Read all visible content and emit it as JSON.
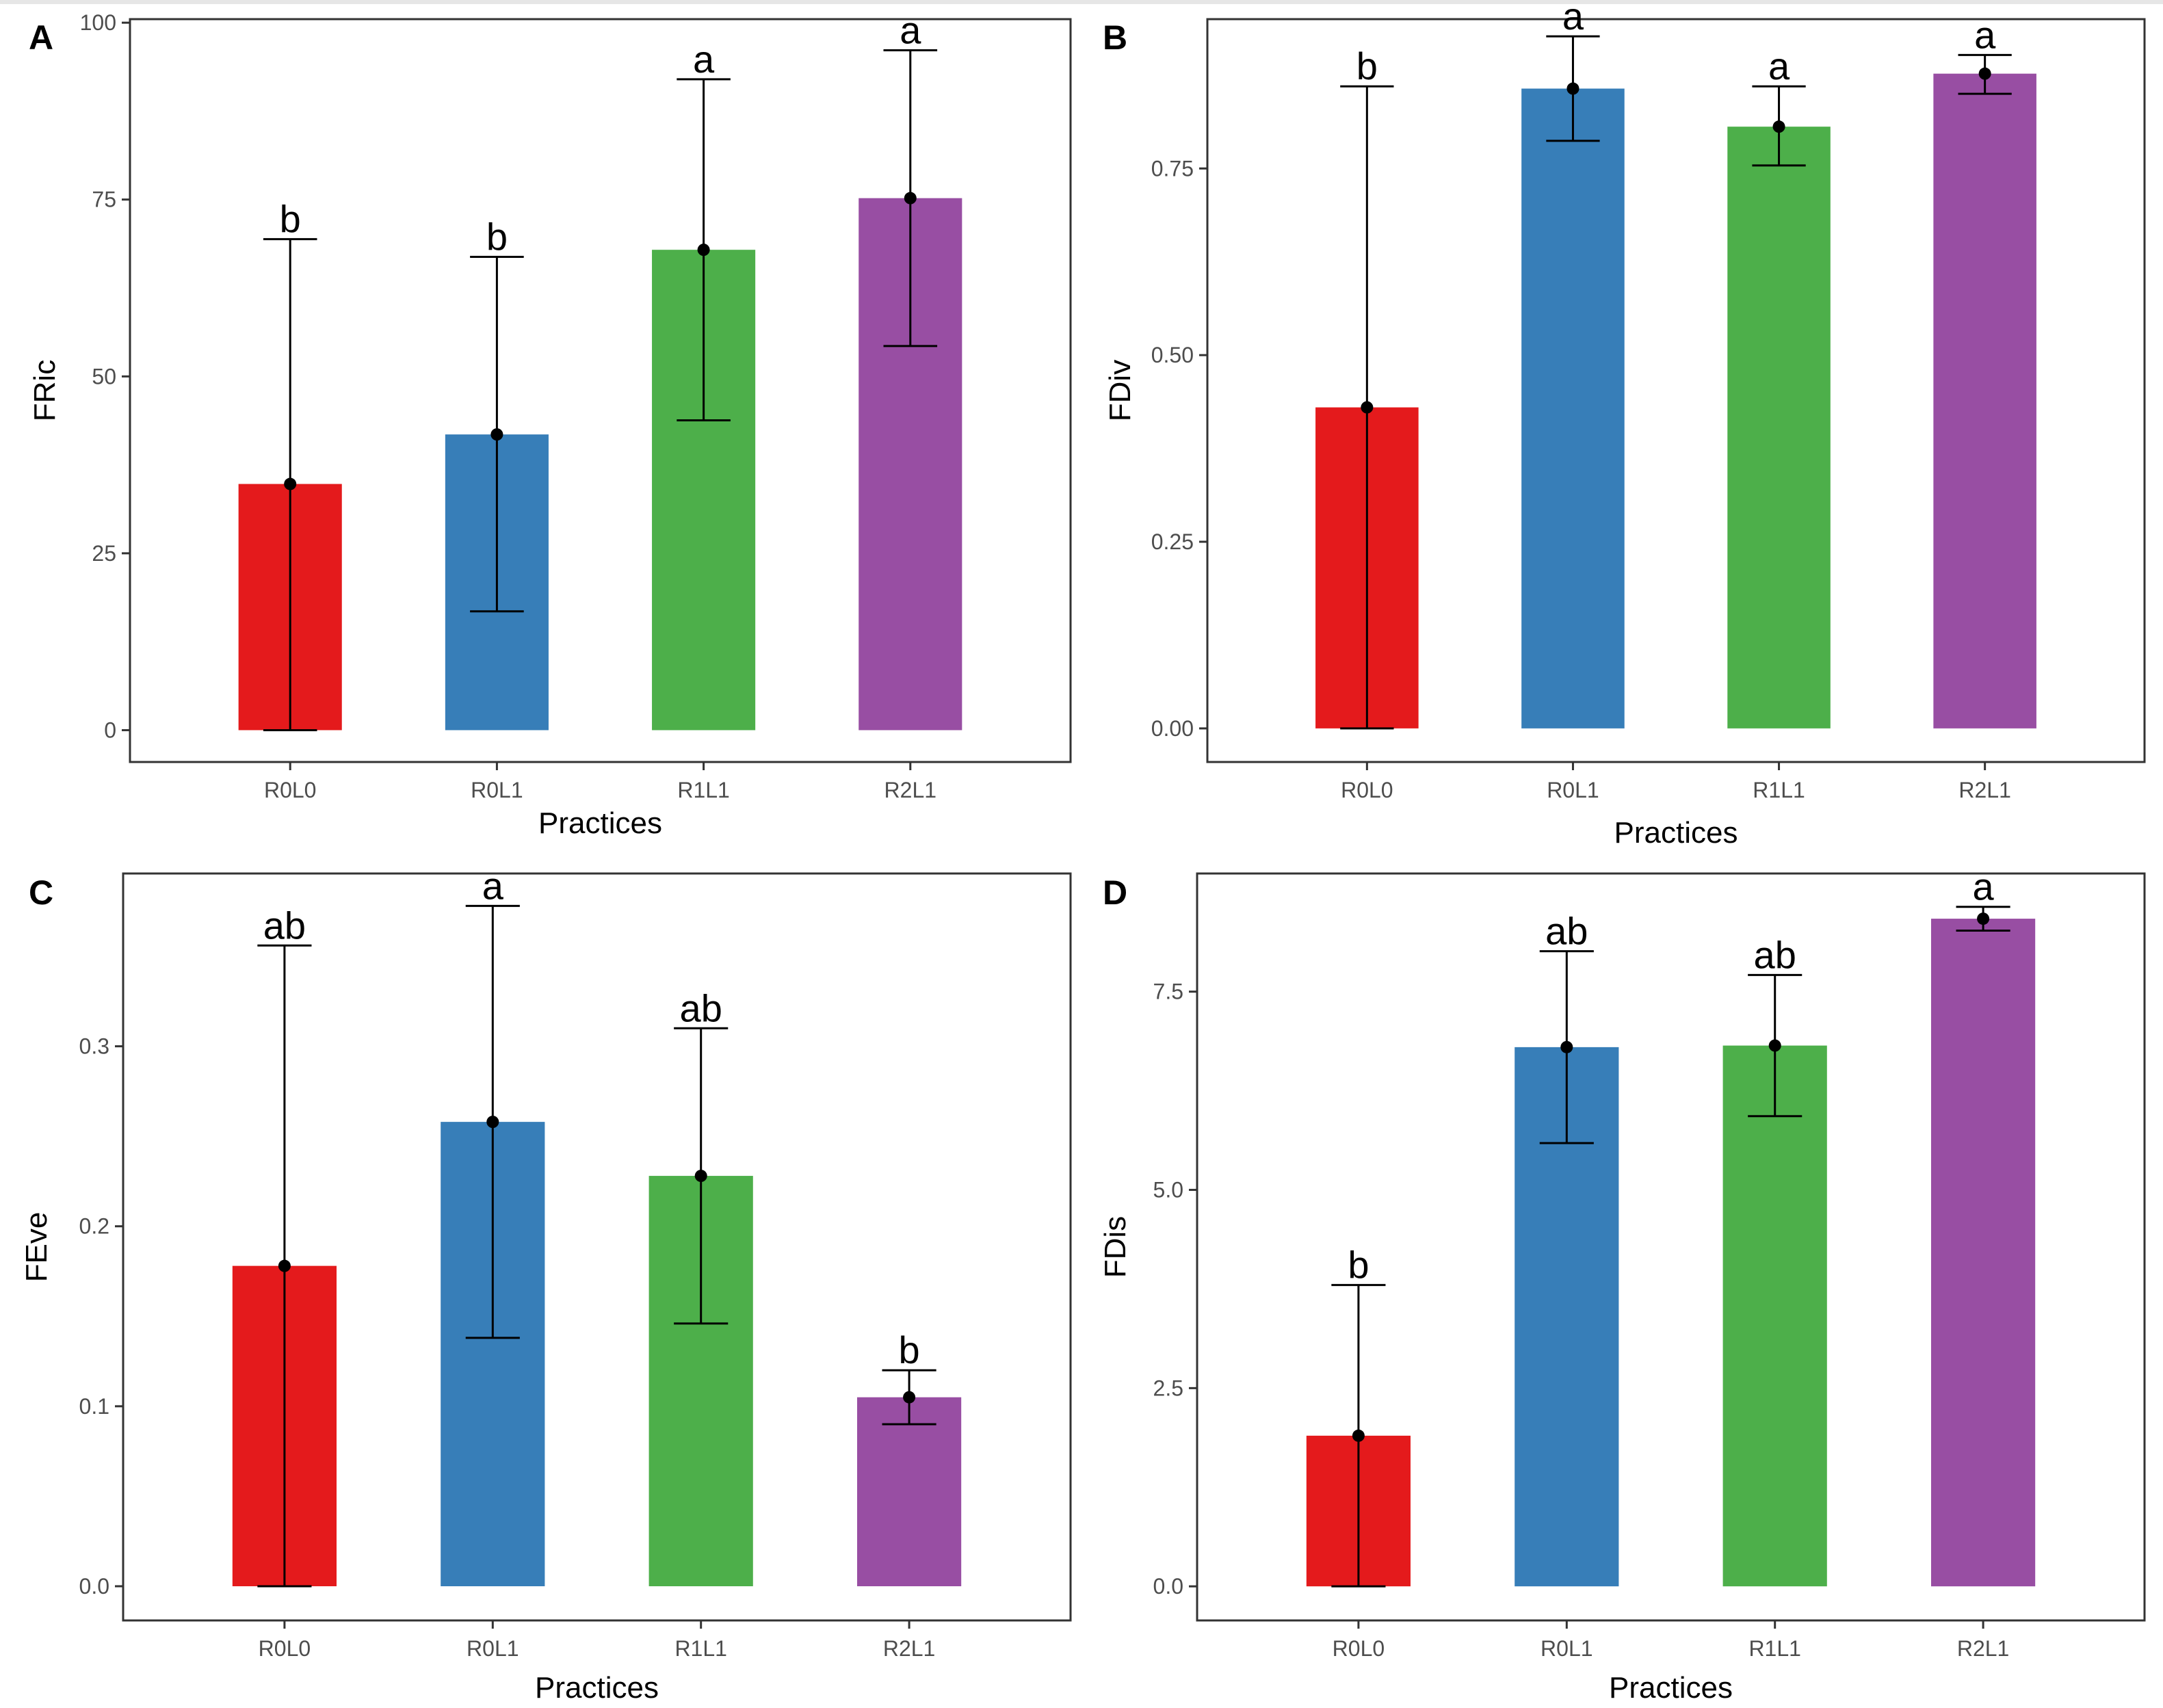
{
  "chart_data": [
    {
      "panel": "A",
      "type": "bar",
      "xlabel": "Practices",
      "ylabel": "FRic",
      "categories": [
        "R0L0",
        "R0L1",
        "R1L1",
        "R2L1"
      ],
      "values": [
        34.8,
        41.8,
        67.9,
        75.2
      ],
      "error_low": [
        0,
        16.8,
        43.8,
        54.3
      ],
      "error_high": [
        69.4,
        66.9,
        92.0,
        96.1
      ],
      "significance": [
        "b",
        "b",
        "a",
        "a"
      ],
      "ylim": [
        -4.5,
        100.5
      ],
      "yticks": [
        0,
        25,
        50,
        75,
        100
      ],
      "ytick_labels": [
        "0",
        "25",
        "50",
        "75",
        "100"
      ],
      "grid": false
    },
    {
      "panel": "B",
      "type": "bar",
      "xlabel": "Practices",
      "ylabel": "FDiv",
      "categories": [
        "R0L0",
        "R0L1",
        "R1L1",
        "R2L1"
      ],
      "values": [
        0.43,
        0.857,
        0.806,
        0.877
      ],
      "error_low": [
        0,
        0.787,
        0.754,
        0.85
      ],
      "error_high": [
        0.86,
        0.927,
        0.86,
        0.902
      ],
      "significance": [
        "b",
        "a",
        "a",
        "a"
      ],
      "ylim": [
        -0.045,
        0.95
      ],
      "yticks": [
        0,
        0.25,
        0.5,
        0.75
      ],
      "ytick_labels": [
        "0.00",
        "0.25",
        "0.50",
        "0.75"
      ],
      "grid": false
    },
    {
      "panel": "C",
      "type": "bar",
      "xlabel": "Practices",
      "ylabel": "FEve",
      "categories": [
        "R0L0",
        "R0L1",
        "R1L1",
        "R2L1"
      ],
      "values": [
        0.178,
        0.258,
        0.228,
        0.105
      ],
      "error_low": [
        0,
        0.138,
        0.146,
        0.09
      ],
      "error_high": [
        0.356,
        0.378,
        0.31,
        0.12
      ],
      "significance": [
        "ab",
        "a",
        "ab",
        "b"
      ],
      "ylim": [
        -0.019,
        0.396
      ],
      "yticks": [
        0,
        0.1,
        0.2,
        0.3
      ],
      "ytick_labels": [
        "0.0",
        "0.1",
        "0.2",
        "0.3"
      ],
      "grid": false
    },
    {
      "panel": "D",
      "type": "bar",
      "xlabel": "Practices",
      "ylabel": "FDis",
      "categories": [
        "R0L0",
        "R0L1",
        "R1L1",
        "R2L1"
      ],
      "values": [
        1.9,
        6.8,
        6.82,
        8.42
      ],
      "error_low": [
        0,
        5.59,
        5.93,
        8.27
      ],
      "error_high": [
        3.8,
        8.01,
        7.71,
        8.57
      ],
      "significance": [
        "b",
        "ab",
        "ab",
        "a"
      ],
      "ylim": [
        -0.43,
        8.99
      ],
      "yticks": [
        0,
        2.5,
        5,
        7.5
      ],
      "ytick_labels": [
        "0.0",
        "2.5",
        "5.0",
        "7.5"
      ],
      "grid": false
    }
  ],
  "colors": {
    "R0L0": "#e41a1c",
    "R0L1": "#377eb8",
    "R1L1": "#4daf4a",
    "R2L1": "#984ea3",
    "frame": "#333333",
    "tick_text": "#4d4d4d",
    "error_bar": "#000000"
  }
}
